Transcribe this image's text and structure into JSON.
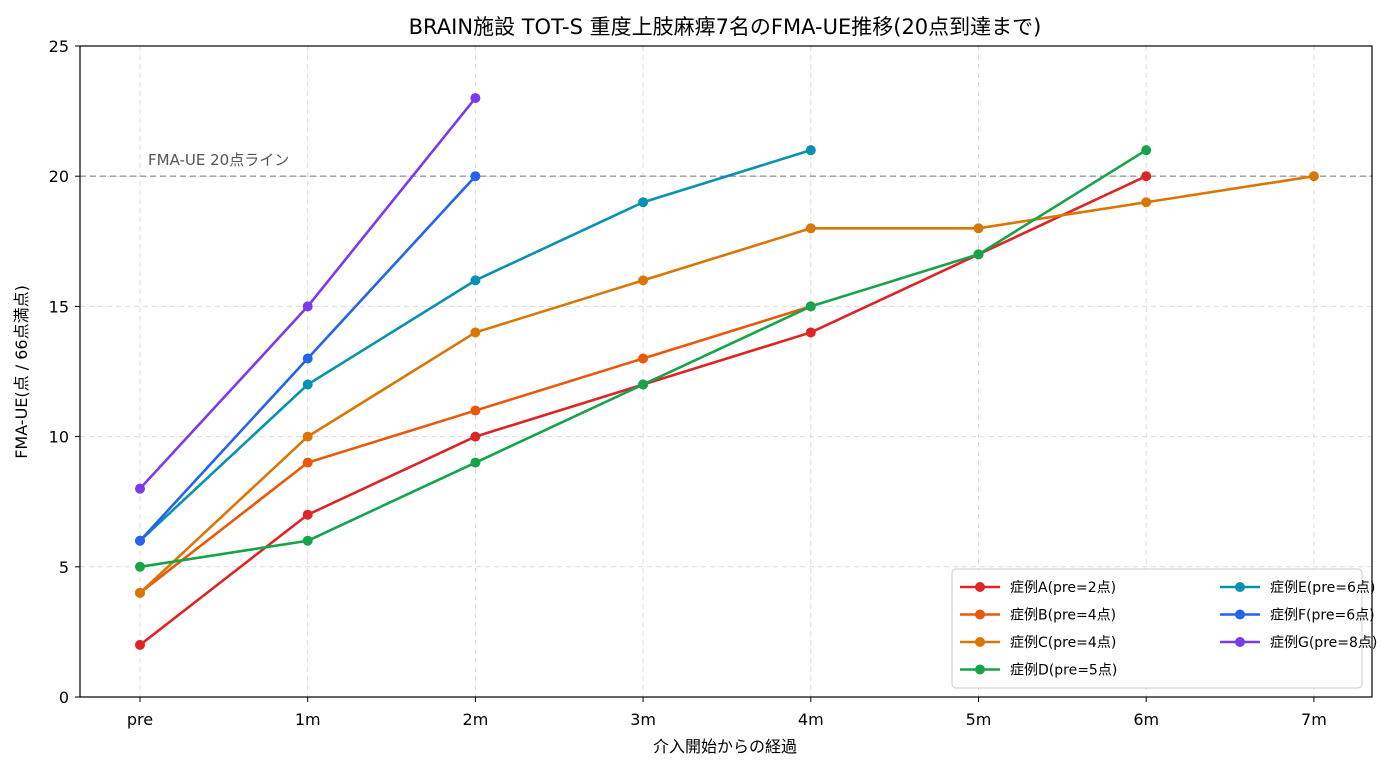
{
  "chart_data": {
    "type": "line",
    "title": "BRAIN施設 TOT-S 重度上肢麻痺7名のFMA-UE推移(20点到達まで)",
    "xlabel": "介入開始からの経過",
    "ylabel": "FMA-UE(点 / 66点満点)",
    "categories": [
      "pre",
      "1m",
      "2m",
      "3m",
      "4m",
      "5m",
      "6m",
      "7m"
    ],
    "ylim": [
      0,
      25
    ],
    "yticks": [
      0,
      5,
      10,
      15,
      20,
      25
    ],
    "grid": true,
    "legend_position": "bottom-right",
    "reference_line": {
      "y": 20,
      "label": "FMA-UE 20点ライン",
      "color": "#999999"
    },
    "series": [
      {
        "name": "症例A(pre=2点)",
        "color": "#dc2626",
        "values": [
          2,
          7,
          10,
          12,
          14,
          17,
          20,
          null
        ]
      },
      {
        "name": "症例B(pre=4点)",
        "color": "#ea580c",
        "values": [
          4,
          9,
          11,
          13,
          15,
          null,
          null,
          null
        ]
      },
      {
        "name": "症例C(pre=4点)",
        "color": "#d97706",
        "values": [
          4,
          10,
          14,
          16,
          18,
          18,
          19,
          20
        ]
      },
      {
        "name": "症例D(pre=5点)",
        "color": "#16a34a",
        "values": [
          5,
          6,
          9,
          12,
          15,
          17,
          21,
          null
        ]
      },
      {
        "name": "症例E(pre=6点)",
        "color": "#0891b2",
        "values": [
          6,
          12,
          16,
          19,
          21,
          null,
          null,
          null
        ]
      },
      {
        "name": "症例F(pre=6点)",
        "color": "#2563eb",
        "values": [
          6,
          13,
          20,
          null,
          null,
          null,
          null,
          null
        ]
      },
      {
        "name": "症例G(pre=8点)",
        "color": "#7c3aed",
        "values": [
          8,
          15,
          23,
          null,
          null,
          null,
          null,
          null
        ]
      }
    ]
  }
}
